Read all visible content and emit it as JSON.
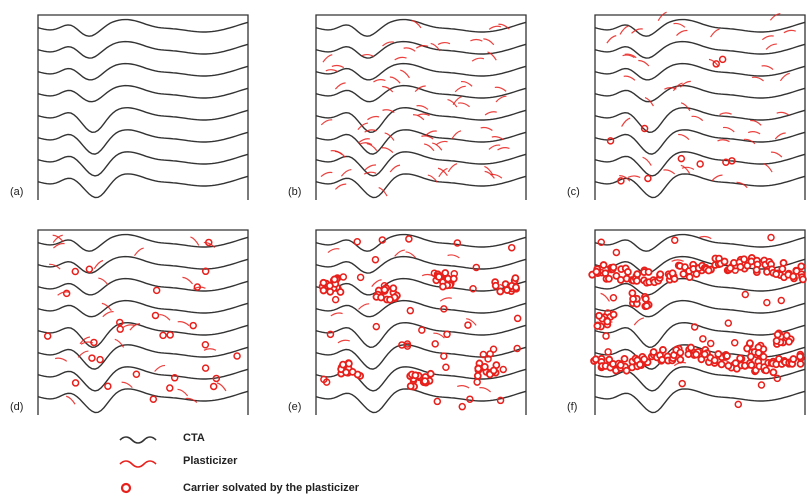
{
  "panels": [
    {
      "label": "(a)"
    },
    {
      "label": "(b)"
    },
    {
      "label": "(c)"
    },
    {
      "label": "(d)"
    },
    {
      "label": "(e)"
    },
    {
      "label": "(f)"
    }
  ],
  "legend": [
    {
      "label": "CTA"
    },
    {
      "label": "Plasticizer"
    },
    {
      "label": "Carrier solvated by the plasticizer"
    }
  ]
}
